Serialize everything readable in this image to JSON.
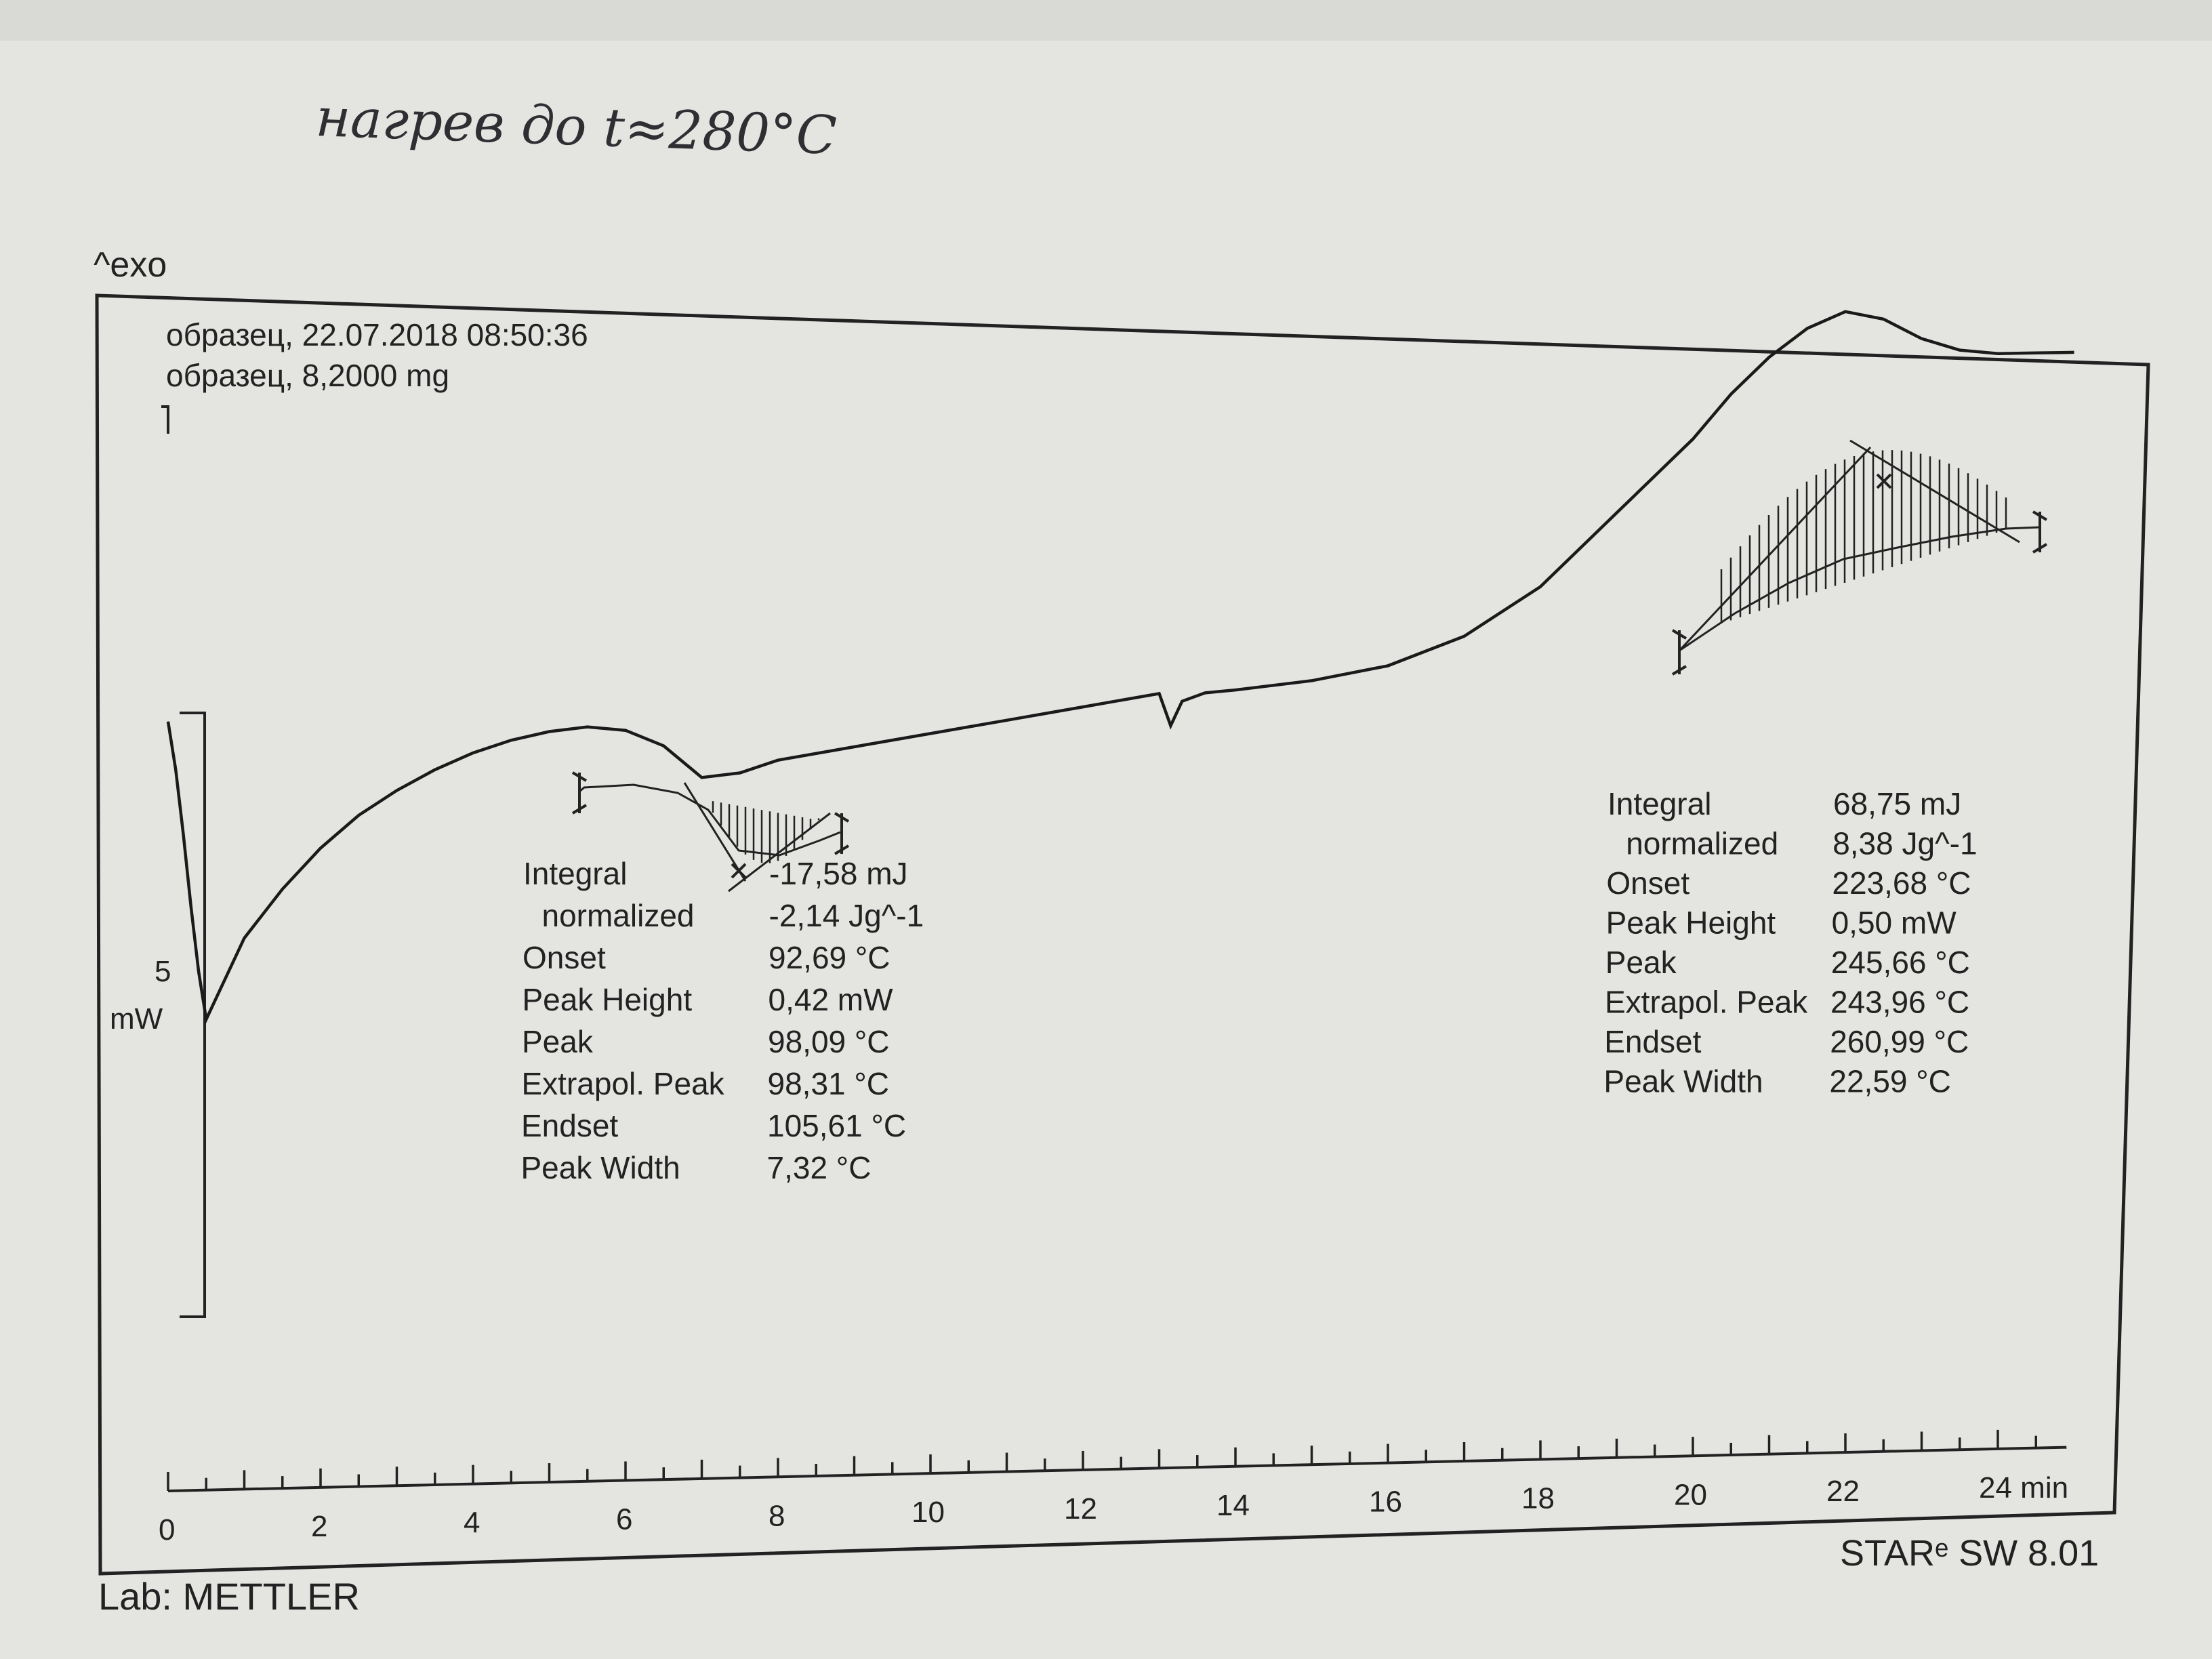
{
  "handwritten_note": "нагрев до t≈280°C",
  "chart_data": {
    "type": "line",
    "exo_label": "^exo",
    "header_lines": [
      "образец, 22.07.2018 08:50:36",
      "образец, 8,2000 mg"
    ],
    "y_scale_label_value": "5",
    "y_scale_label_unit": "mW",
    "x_ticks": [
      0,
      2,
      4,
      6,
      8,
      10,
      12,
      14,
      16,
      18,
      20,
      22,
      24
    ],
    "x_unit": "min",
    "xlim": [
      0,
      24
    ],
    "series": [
      {
        "x": [
          0,
          0.1,
          0.2,
          0.3,
          0.4,
          0.5,
          0.7,
          1,
          1.5,
          2,
          2.5,
          3,
          3.5,
          4,
          4.5,
          5,
          5.5,
          6,
          6.5,
          7,
          7.5,
          8,
          9,
          10,
          11,
          12,
          13,
          13.15,
          13.3,
          13.6,
          14,
          15,
          16,
          17,
          18,
          19,
          20,
          20.5,
          21,
          21.5,
          22,
          22.5,
          23,
          23.5,
          24,
          24.5,
          25
        ],
        "y": [
          37,
          31,
          23,
          14,
          6,
          0,
          4,
          10,
          16,
          21,
          25,
          28,
          30.5,
          32.5,
          34,
          35,
          35.5,
          35,
          33,
          29,
          29.5,
          31,
          32.5,
          34,
          35.5,
          37,
          38.5,
          34.5,
          37.5,
          38.5,
          38.8,
          39.8,
          41.5,
          45,
          51,
          60,
          69,
          74.5,
          79,
          82.5,
          84.5,
          83.5,
          81,
          79.5,
          79,
          79,
          79
        ]
      }
    ],
    "peaks": [
      {
        "Integral": "-17,58 mJ",
        "normalized": "-2,14 Jg^-1",
        "Onset": "92,69 °C",
        "Peak Height": "0,42 mW",
        "Peak": "98,09 °C",
        "Extrapol. Peak": "98,31 °C",
        "Endset": "105,61 °C",
        "Peak Width": "7,32 °C"
      },
      {
        "Integral": "68,75 mJ",
        "normalized": "8,38 Jg^-1",
        "Onset": "223,68 °C",
        "Peak Height": "0,50 mW",
        "Peak": "245,66 °C",
        "Extrapol. Peak": "243,96 °C",
        "Endset": "260,99 °C",
        "Peak Width": "22,59 °C"
      }
    ],
    "footer_lab": "Lab: METTLER",
    "footer_sw": "STARᵉ SW 8.01"
  }
}
